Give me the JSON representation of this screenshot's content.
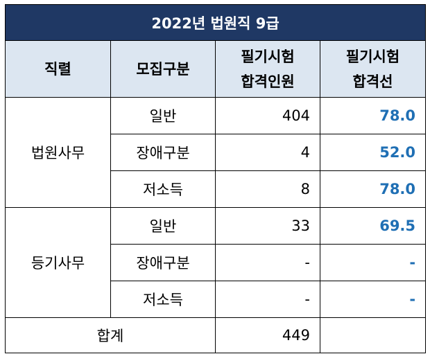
{
  "title": "2022년 법원직 9급",
  "headers": {
    "rank": "직렬",
    "recruit_type": "모집구분",
    "pass_count": "필기시험\n합격인원",
    "pass_line": "필기시험\n합격선"
  },
  "groups": [
    {
      "name": "법원사무",
      "rows": [
        {
          "type": "일반",
          "count": "404",
          "cutoff": "78.0"
        },
        {
          "type": "장애구분",
          "count": "4",
          "cutoff": "52.0"
        },
        {
          "type": "저소득",
          "count": "8",
          "cutoff": "78.0"
        }
      ]
    },
    {
      "name": "등기사무",
      "rows": [
        {
          "type": "일반",
          "count": "33",
          "cutoff": "69.5"
        },
        {
          "type": "장애구분",
          "count": "-",
          "cutoff": "-"
        },
        {
          "type": "저소득",
          "count": "-",
          "cutoff": "-"
        }
      ]
    }
  ],
  "total": {
    "label": "합계",
    "count": "449",
    "cutoff": ""
  }
}
